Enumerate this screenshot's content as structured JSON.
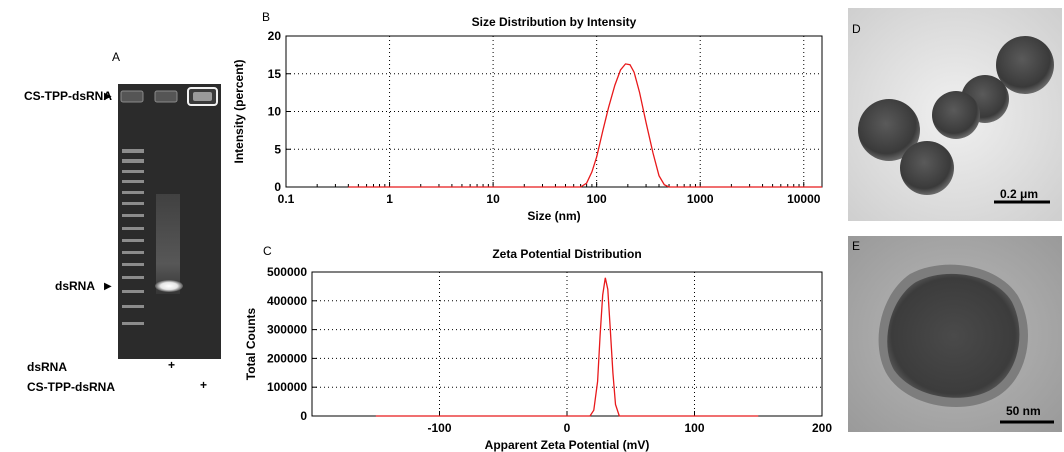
{
  "panel_a": {
    "letter": "A",
    "top_band_label": "CS-TPP-dsRNA",
    "mid_band_label": "dsRNA",
    "row1_label": "dsRNA",
    "row1_mark": "+",
    "row2_label": "CS-TPP-dsRNA",
    "row2_mark": "+"
  },
  "panel_d": {
    "letter": "D",
    "scale": "0.2 μm"
  },
  "panel_e": {
    "letter": "E",
    "scale": "50 nm"
  },
  "colors": {
    "series": "#e8191b",
    "grid": "#000000"
  },
  "chart_data": [
    {
      "panel": "B",
      "type": "line",
      "title": "Size Distribution  by Intensity",
      "xlabel": "Size (nm)",
      "ylabel": "Intensity (percent)",
      "x_scale": "log",
      "xlim": [
        0.1,
        15000
      ],
      "ylim": [
        0,
        20
      ],
      "x_ticks": [
        0.1,
        1,
        10,
        100,
        1000,
        10000
      ],
      "x_tick_labels": [
        "0.1",
        "1",
        "10",
        "100",
        "1000",
        "10000"
      ],
      "y_ticks": [
        0,
        5,
        10,
        15,
        20
      ],
      "y_tick_labels": [
        "0",
        "5",
        "10",
        "15",
        "20"
      ],
      "grid": true,
      "series": [
        {
          "x": [
            0.4,
            70,
            80,
            90,
            100,
            115,
            130,
            150,
            170,
            190,
            210,
            230,
            260,
            300,
            350,
            400,
            450,
            500,
            15000
          ],
          "y": [
            0,
            0,
            0.5,
            2,
            4,
            7.5,
            10.5,
            13.5,
            15.5,
            16.3,
            16.2,
            15.2,
            12.5,
            8.5,
            4.5,
            1.5,
            0.3,
            0,
            0
          ]
        }
      ]
    },
    {
      "panel": "C",
      "type": "line",
      "title": "Zeta Potential Distribution",
      "xlabel": "Apparent Zeta Potential (mV)",
      "ylabel": "Total Counts",
      "xlim": [
        -200,
        200
      ],
      "ylim": [
        0,
        500000
      ],
      "x_ticks": [
        -100,
        0,
        100,
        200
      ],
      "x_tick_labels": [
        "-100",
        "0",
        "100",
        "200"
      ],
      "y_ticks": [
        0,
        100000,
        200000,
        300000,
        400000,
        500000
      ],
      "y_tick_labels": [
        "0",
        "100000",
        "200000",
        "300000",
        "400000",
        "500000"
      ],
      "grid": true,
      "series": [
        {
          "x": [
            -150,
            18,
            21,
            24,
            26,
            28,
            30,
            32,
            34,
            36,
            38,
            41,
            150
          ],
          "y": [
            0,
            0,
            20000,
            120000,
            280000,
            420000,
            480000,
            440000,
            300000,
            150000,
            40000,
            0,
            0
          ]
        }
      ]
    }
  ]
}
